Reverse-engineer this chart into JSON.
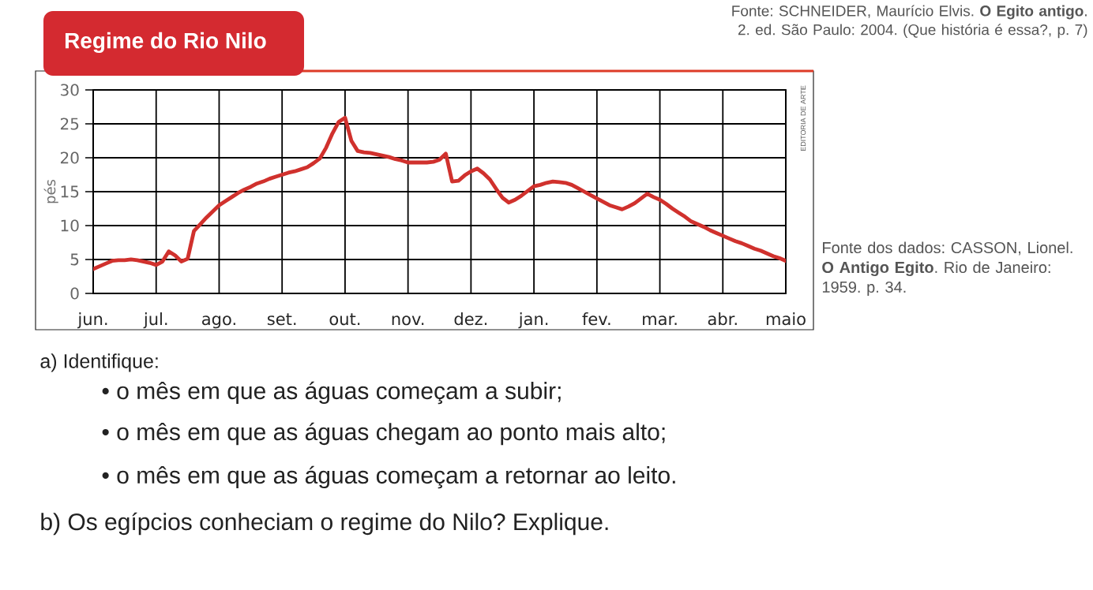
{
  "chart_data": {
    "type": "line",
    "title": "Regime do Rio Nilo",
    "ylabel": "pés",
    "categories": [
      "jun.",
      null,
      null,
      null,
      null,
      null,
      null,
      null,
      null,
      null,
      "jul.",
      null,
      null,
      null,
      null,
      null,
      null,
      null,
      null,
      null,
      "ago.",
      null,
      null,
      null,
      null,
      null,
      null,
      null,
      null,
      null,
      "set.",
      null,
      null,
      null,
      null,
      null,
      null,
      null,
      null,
      null,
      "out.",
      null,
      null,
      null,
      null,
      null,
      null,
      null,
      null,
      null,
      "nov.",
      null,
      null,
      null,
      null,
      null,
      null,
      null,
      null,
      null,
      "dez.",
      null,
      null,
      null,
      null,
      null,
      null,
      null,
      null,
      null,
      "jan.",
      null,
      null,
      null,
      null,
      null,
      null,
      null,
      null,
      null,
      "fev.",
      null,
      null,
      null,
      null,
      null,
      null,
      null,
      null,
      null,
      "mar.",
      null,
      null,
      null,
      null,
      null,
      null,
      null,
      null,
      null,
      "abr.",
      null,
      null,
      null,
      null,
      null,
      null,
      null,
      null,
      null,
      "maio"
    ],
    "values": [
      3.6,
      4.0,
      4.4,
      4.8,
      4.9,
      4.9,
      5.0,
      4.9,
      4.7,
      4.5,
      4.2,
      4.7,
      6.2,
      5.6,
      4.7,
      5.1,
      9.2,
      10.2,
      11.2,
      12.1,
      13.0,
      13.6,
      14.2,
      14.8,
      15.3,
      15.7,
      16.2,
      16.5,
      16.9,
      17.2,
      17.5,
      17.8,
      18.0,
      18.3,
      18.6,
      19.2,
      19.9,
      21.5,
      23.6,
      25.3,
      25.9,
      22.5,
      21.0,
      20.8,
      20.7,
      20.5,
      20.3,
      20.1,
      19.8,
      19.6,
      19.3,
      19.3,
      19.3,
      19.3,
      19.4,
      19.7,
      20.6,
      16.5,
      16.6,
      17.4,
      18.0,
      18.4,
      17.7,
      16.8,
      15.4,
      14.1,
      13.4,
      13.8,
      14.4,
      15.1,
      15.8,
      16.0,
      16.3,
      16.5,
      16.4,
      16.3,
      16.0,
      15.5,
      15.0,
      14.5,
      14.0,
      13.5,
      13.0,
      12.7,
      12.4,
      12.8,
      13.3,
      14.0,
      14.7,
      14.2,
      13.8,
      13.2,
      12.5,
      11.9,
      11.3,
      10.6,
      10.2,
      9.8,
      9.3,
      8.9,
      8.5,
      8.1,
      7.7,
      7.4,
      7.0,
      6.6,
      6.3,
      5.9,
      5.5,
      5.2,
      4.8
    ],
    "color": "#d0312d",
    "ylim": [
      0,
      30
    ],
    "yticks": [
      0,
      5,
      10,
      15,
      20,
      25,
      30
    ],
    "grid": true,
    "annotations": [
      "Fonte: SCHNEIDER, Maurício Elvis. **O Egito antigo**. 2. ed. São Paulo: 2004. (Que história é essa?, p. 7)",
      "EDITORIA DE ARTE",
      "Fonte dos dados: CASSON, Lionel. **O Antigo Egito**. Rio de Janeiro: 1959. p. 34.",
      "a) Identifique:",
      "• o mês em que as águas começam a subir;",
      "• o mês em que as águas chegam ao ponto mais alto;",
      "• o mês em que as águas começam a retornar ao leito.",
      "b) Os egípcios conheciam o regime do Nilo? Explique."
    ]
  }
}
